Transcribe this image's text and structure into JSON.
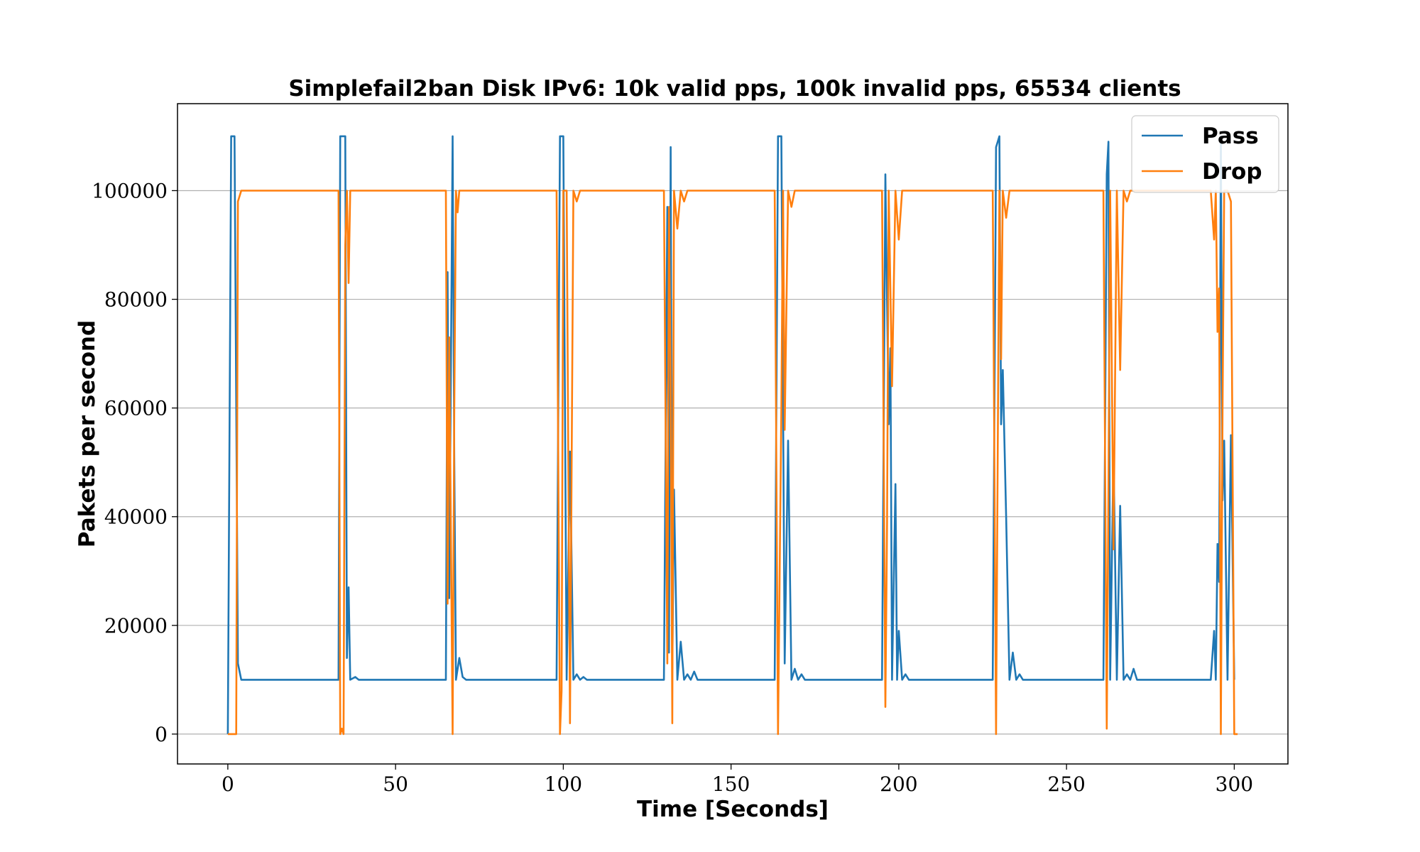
{
  "chart_data": {
    "type": "line",
    "title": "Simplefail2ban Disk IPv6: 10k valid pps, 100k invalid pps, 65534 clients",
    "xlabel": "Time [Seconds]",
    "ylabel": "Pakets per second",
    "xlim": [
      -15,
      316
    ],
    "ylim": [
      -5500,
      116000
    ],
    "xticks": [
      0,
      50,
      100,
      150,
      200,
      250,
      300
    ],
    "yticks": [
      0,
      20000,
      40000,
      60000,
      80000,
      100000
    ],
    "grid": "horizontal",
    "legend_position": "top-right",
    "series": [
      {
        "name": "Pass",
        "color": "#1f77b4",
        "points": [
          [
            0,
            0
          ],
          [
            1,
            110000
          ],
          [
            1.5,
            110000
          ],
          [
            2,
            110000
          ],
          [
            3,
            13000
          ],
          [
            4,
            10000
          ],
          [
            10,
            10000
          ],
          [
            20,
            10000
          ],
          [
            30,
            10000
          ],
          [
            33,
            10000
          ],
          [
            33.5,
            110000
          ],
          [
            34.5,
            110000
          ],
          [
            35,
            110000
          ],
          [
            35.5,
            14000
          ],
          [
            36,
            27000
          ],
          [
            36.5,
            10000
          ],
          [
            38,
            10500
          ],
          [
            39,
            10000
          ],
          [
            50,
            10000
          ],
          [
            65,
            10000
          ],
          [
            65.5,
            85000
          ],
          [
            66,
            25000
          ],
          [
            67,
            110000
          ],
          [
            67.5,
            51000
          ],
          [
            68,
            10000
          ],
          [
            69,
            14000
          ],
          [
            70,
            10500
          ],
          [
            71,
            10000
          ],
          [
            80,
            10000
          ],
          [
            98,
            10000
          ],
          [
            99,
            110000
          ],
          [
            100,
            110000
          ],
          [
            101,
            10000
          ],
          [
            102,
            52000
          ],
          [
            103,
            10000
          ],
          [
            104,
            11000
          ],
          [
            105,
            10000
          ],
          [
            106,
            10500
          ],
          [
            107,
            10000
          ],
          [
            115,
            10000
          ],
          [
            130,
            10000
          ],
          [
            131,
            97000
          ],
          [
            131.5,
            15000
          ],
          [
            132,
            108000
          ],
          [
            132.5,
            12000
          ],
          [
            133,
            45000
          ],
          [
            134,
            10000
          ],
          [
            135,
            17000
          ],
          [
            136,
            10000
          ],
          [
            137,
            11000
          ],
          [
            138,
            10000
          ],
          [
            139,
            11500
          ],
          [
            140,
            10000
          ],
          [
            150,
            10000
          ],
          [
            163,
            10000
          ],
          [
            164,
            110000
          ],
          [
            165,
            110000
          ],
          [
            166,
            13000
          ],
          [
            167,
            54000
          ],
          [
            168,
            10000
          ],
          [
            169,
            12000
          ],
          [
            170,
            10000
          ],
          [
            171,
            11000
          ],
          [
            172,
            10000
          ],
          [
            180,
            10000
          ],
          [
            195,
            10000
          ],
          [
            196,
            103000
          ],
          [
            197,
            57000
          ],
          [
            197.5,
            71000
          ],
          [
            198,
            10000
          ],
          [
            199,
            46000
          ],
          [
            199.5,
            10000
          ],
          [
            200,
            19000
          ],
          [
            201,
            10000
          ],
          [
            202,
            11000
          ],
          [
            203,
            10000
          ],
          [
            215,
            10000
          ],
          [
            228,
            10000
          ],
          [
            229,
            108000
          ],
          [
            230,
            110000
          ],
          [
            230.5,
            57000
          ],
          [
            231,
            67000
          ],
          [
            232,
            40000
          ],
          [
            233,
            10000
          ],
          [
            234,
            15000
          ],
          [
            235,
            10000
          ],
          [
            236,
            11000
          ],
          [
            237,
            10000
          ],
          [
            250,
            10000
          ],
          [
            261,
            10000
          ],
          [
            262,
            103000
          ],
          [
            262.5,
            109000
          ],
          [
            263,
            10000
          ],
          [
            264,
            52000
          ],
          [
            265,
            10000
          ],
          [
            266,
            42000
          ],
          [
            267,
            10000
          ],
          [
            268,
            11000
          ],
          [
            269,
            10000
          ],
          [
            270,
            12000
          ],
          [
            271,
            10000
          ],
          [
            285,
            10000
          ],
          [
            293,
            10000
          ],
          [
            294,
            19000
          ],
          [
            294.5,
            10000
          ],
          [
            295,
            35000
          ],
          [
            295.5,
            28000
          ],
          [
            296,
            110000
          ],
          [
            296.5,
            43000
          ],
          [
            297,
            54000
          ],
          [
            298,
            10000
          ],
          [
            299,
            55000
          ],
          [
            300,
            10000
          ]
        ]
      },
      {
        "name": "Drop",
        "color": "#ff7f0e",
        "points": [
          [
            0,
            0
          ],
          [
            2,
            0
          ],
          [
            2.5,
            0
          ],
          [
            3,
            98000
          ],
          [
            4,
            100000
          ],
          [
            10,
            100000
          ],
          [
            20,
            100000
          ],
          [
            30,
            100000
          ],
          [
            33,
            100000
          ],
          [
            33.5,
            0
          ],
          [
            34,
            1000
          ],
          [
            34.5,
            0
          ],
          [
            35,
            90000
          ],
          [
            35.5,
            100000
          ],
          [
            36,
            83000
          ],
          [
            36.5,
            100000
          ],
          [
            50,
            100000
          ],
          [
            65,
            100000
          ],
          [
            65.5,
            24000
          ],
          [
            66,
            73000
          ],
          [
            67,
            0
          ],
          [
            67.5,
            59000
          ],
          [
            68,
            100000
          ],
          [
            68.5,
            96000
          ],
          [
            69,
            100000
          ],
          [
            80,
            100000
          ],
          [
            98,
            100000
          ],
          [
            99,
            0
          ],
          [
            99.5,
            8000
          ],
          [
            100,
            100000
          ],
          [
            101,
            100000
          ],
          [
            102,
            2000
          ],
          [
            103,
            100000
          ],
          [
            104,
            98000
          ],
          [
            105,
            100000
          ],
          [
            115,
            100000
          ],
          [
            130,
            100000
          ],
          [
            131,
            13000
          ],
          [
            131.5,
            97000
          ],
          [
            132,
            65000
          ],
          [
            132.5,
            2000
          ],
          [
            133,
            100000
          ],
          [
            134,
            93000
          ],
          [
            135,
            100000
          ],
          [
            136,
            98000
          ],
          [
            137,
            100000
          ],
          [
            150,
            100000
          ],
          [
            163,
            100000
          ],
          [
            164,
            0
          ],
          [
            165,
            60000
          ],
          [
            165.5,
            100000
          ],
          [
            166,
            56000
          ],
          [
            167,
            100000
          ],
          [
            168,
            97000
          ],
          [
            169,
            100000
          ],
          [
            180,
            100000
          ],
          [
            195,
            100000
          ],
          [
            196,
            5000
          ],
          [
            196.5,
            39000
          ],
          [
            197,
            100000
          ],
          [
            198,
            64000
          ],
          [
            199,
            100000
          ],
          [
            200,
            91000
          ],
          [
            201,
            100000
          ],
          [
            215,
            100000
          ],
          [
            228,
            100000
          ],
          [
            229,
            0
          ],
          [
            229.5,
            53000
          ],
          [
            230,
            100000
          ],
          [
            230.5,
            69000
          ],
          [
            231,
            100000
          ],
          [
            232,
            95000
          ],
          [
            233,
            100000
          ],
          [
            250,
            100000
          ],
          [
            261,
            100000
          ],
          [
            262,
            1000
          ],
          [
            262.5,
            45000
          ],
          [
            263,
            100000
          ],
          [
            264,
            34000
          ],
          [
            265,
            100000
          ],
          [
            266,
            67000
          ],
          [
            267,
            100000
          ],
          [
            268,
            98000
          ],
          [
            269,
            100000
          ],
          [
            285,
            100000
          ],
          [
            293,
            100000
          ],
          [
            294,
            91000
          ],
          [
            294.5,
            100000
          ],
          [
            295,
            74000
          ],
          [
            295.5,
            82000
          ],
          [
            296,
            0
          ],
          [
            296.5,
            60000
          ],
          [
            297,
            100000
          ],
          [
            298,
            100000
          ],
          [
            299,
            98000
          ],
          [
            300,
            0
          ],
          [
            301,
            0
          ]
        ]
      }
    ]
  }
}
